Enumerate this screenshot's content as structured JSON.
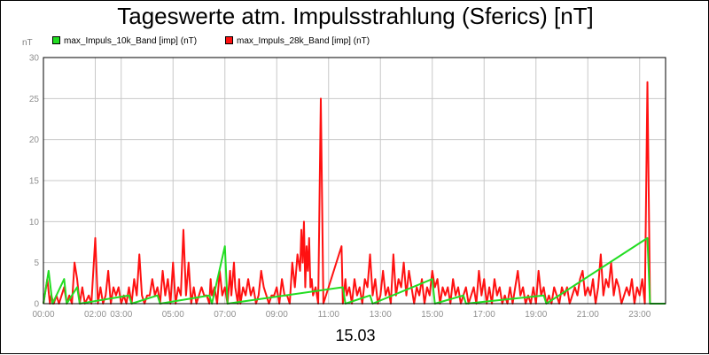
{
  "chart_data": {
    "type": "line",
    "title": "Tageswerte atm. Impulsstrahlung (Sferics) [nT]",
    "ylabel": "nT",
    "xlabel": "15.03",
    "ylim": [
      0,
      30
    ],
    "yticks": [
      "0",
      "5",
      "10",
      "15",
      "20",
      "25",
      "30"
    ],
    "xlim": [
      0,
      24
    ],
    "xticks": [
      {
        "h": 0,
        "label": "00:00"
      },
      {
        "h": 2,
        "label": "02:00"
      },
      {
        "h": 3,
        "label": "03:00"
      },
      {
        "h": 5,
        "label": "05:00"
      },
      {
        "h": 7,
        "label": "07:00"
      },
      {
        "h": 9,
        "label": "09:00"
      },
      {
        "h": 11,
        "label": "11:00"
      },
      {
        "h": 13,
        "label": "13:00"
      },
      {
        "h": 15,
        "label": "15:00"
      },
      {
        "h": 17,
        "label": "17:00"
      },
      {
        "h": 19,
        "label": "19:00"
      },
      {
        "h": 21,
        "label": "21:00"
      },
      {
        "h": 23,
        "label": "23:00"
      }
    ],
    "grid": true,
    "legend_position": "top-left",
    "series": [
      {
        "name": "max_Impuls_10k_Band [imp] (nT)",
        "color": "#22dd22",
        "points": [
          [
            0.0,
            0
          ],
          [
            0.2,
            4
          ],
          [
            0.35,
            0
          ],
          [
            0.8,
            3
          ],
          [
            0.9,
            0
          ],
          [
            1.3,
            2
          ],
          [
            1.4,
            0
          ],
          [
            3.3,
            1
          ],
          [
            3.4,
            0
          ],
          [
            4.4,
            1
          ],
          [
            4.5,
            0
          ],
          [
            6.4,
            1
          ],
          [
            6.5,
            0
          ],
          [
            7.0,
            7
          ],
          [
            7.1,
            0
          ],
          [
            11.55,
            2
          ],
          [
            11.65,
            0
          ],
          [
            12.6,
            1
          ],
          [
            12.7,
            0
          ],
          [
            15.0,
            3
          ],
          [
            15.1,
            0
          ],
          [
            16.2,
            1
          ],
          [
            16.3,
            0
          ],
          [
            19.3,
            1
          ],
          [
            19.4,
            0
          ],
          [
            23.3,
            8
          ],
          [
            23.4,
            0
          ]
        ]
      },
      {
        "name": "max_Impuls_28k_Band [imp] (nT)",
        "color": "#ff1111",
        "points": [
          [
            0.0,
            0
          ],
          [
            0.15,
            3
          ],
          [
            0.25,
            0
          ],
          [
            0.3,
            1
          ],
          [
            0.4,
            0
          ],
          [
            0.5,
            1
          ],
          [
            0.6,
            0
          ],
          [
            0.8,
            2
          ],
          [
            0.9,
            0
          ],
          [
            1.0,
            1
          ],
          [
            1.1,
            0
          ],
          [
            1.2,
            5
          ],
          [
            1.3,
            3
          ],
          [
            1.4,
            0
          ],
          [
            1.5,
            2
          ],
          [
            1.6,
            0
          ],
          [
            1.75,
            1
          ],
          [
            1.85,
            0
          ],
          [
            2.0,
            8
          ],
          [
            2.1,
            0
          ],
          [
            2.2,
            2
          ],
          [
            2.3,
            0
          ],
          [
            2.4,
            1
          ],
          [
            2.5,
            4
          ],
          [
            2.6,
            0
          ],
          [
            2.7,
            2
          ],
          [
            2.8,
            1
          ],
          [
            2.9,
            2
          ],
          [
            3.0,
            0
          ],
          [
            3.1,
            1
          ],
          [
            3.2,
            0
          ],
          [
            3.3,
            2
          ],
          [
            3.4,
            0
          ],
          [
            3.5,
            3
          ],
          [
            3.6,
            1
          ],
          [
            3.7,
            6
          ],
          [
            3.8,
            1
          ],
          [
            3.9,
            0
          ],
          [
            4.0,
            1
          ],
          [
            4.1,
            1
          ],
          [
            4.2,
            3
          ],
          [
            4.3,
            1
          ],
          [
            4.4,
            2
          ],
          [
            4.5,
            0
          ],
          [
            4.6,
            4
          ],
          [
            4.7,
            1
          ],
          [
            4.8,
            3
          ],
          [
            4.9,
            0
          ],
          [
            5.0,
            5
          ],
          [
            5.1,
            0
          ],
          [
            5.2,
            2
          ],
          [
            5.3,
            1
          ],
          [
            5.4,
            9
          ],
          [
            5.5,
            1
          ],
          [
            5.6,
            5
          ],
          [
            5.7,
            0
          ],
          [
            5.8,
            2
          ],
          [
            5.9,
            0
          ],
          [
            6.0,
            1
          ],
          [
            6.1,
            2
          ],
          [
            6.2,
            1
          ],
          [
            6.3,
            1
          ],
          [
            6.4,
            0
          ],
          [
            6.45,
            3
          ],
          [
            6.5,
            1
          ],
          [
            6.6,
            2
          ],
          [
            6.7,
            0
          ],
          [
            6.8,
            4
          ],
          [
            6.9,
            1
          ],
          [
            7.0,
            2
          ],
          [
            7.1,
            0
          ],
          [
            7.2,
            4
          ],
          [
            7.25,
            1
          ],
          [
            7.35,
            5
          ],
          [
            7.4,
            2
          ],
          [
            7.5,
            0
          ],
          [
            7.55,
            3
          ],
          [
            7.6,
            0
          ],
          [
            7.7,
            2
          ],
          [
            7.8,
            1
          ],
          [
            7.9,
            3
          ],
          [
            8.0,
            1
          ],
          [
            8.1,
            2
          ],
          [
            8.2,
            0
          ],
          [
            8.3,
            1
          ],
          [
            8.4,
            4
          ],
          [
            8.5,
            2
          ],
          [
            8.6,
            1
          ],
          [
            8.7,
            0
          ],
          [
            8.8,
            1
          ],
          [
            8.9,
            1
          ],
          [
            9.0,
            2
          ],
          [
            9.1,
            0
          ],
          [
            9.2,
            3
          ],
          [
            9.3,
            1
          ],
          [
            9.4,
            1
          ],
          [
            9.5,
            0
          ],
          [
            9.6,
            5
          ],
          [
            9.7,
            2
          ],
          [
            9.8,
            6
          ],
          [
            9.9,
            4
          ],
          [
            9.95,
            9
          ],
          [
            10.0,
            5
          ],
          [
            10.05,
            10
          ],
          [
            10.1,
            2
          ],
          [
            10.15,
            7
          ],
          [
            10.2,
            4
          ],
          [
            10.25,
            8
          ],
          [
            10.3,
            2
          ],
          [
            10.35,
            3
          ],
          [
            10.4,
            1
          ],
          [
            10.5,
            2
          ],
          [
            10.6,
            0
          ],
          [
            10.7,
            25
          ],
          [
            10.8,
            0
          ],
          [
            11.5,
            7
          ],
          [
            11.55,
            0
          ],
          [
            11.65,
            3
          ],
          [
            11.7,
            1
          ],
          [
            11.8,
            2
          ],
          [
            11.9,
            0
          ],
          [
            12.0,
            3
          ],
          [
            12.1,
            1
          ],
          [
            12.2,
            2
          ],
          [
            12.3,
            0
          ],
          [
            12.4,
            3
          ],
          [
            12.5,
            2
          ],
          [
            12.6,
            6
          ],
          [
            12.7,
            1
          ],
          [
            12.8,
            3
          ],
          [
            12.9,
            0
          ],
          [
            13.0,
            1
          ],
          [
            13.1,
            4
          ],
          [
            13.2,
            1
          ],
          [
            13.3,
            2
          ],
          [
            13.4,
            0
          ],
          [
            13.5,
            6
          ],
          [
            13.6,
            1
          ],
          [
            13.7,
            3
          ],
          [
            13.8,
            2
          ],
          [
            13.9,
            5
          ],
          [
            14.0,
            1
          ],
          [
            14.1,
            4
          ],
          [
            14.2,
            2
          ],
          [
            14.3,
            0
          ],
          [
            14.4,
            2
          ],
          [
            14.5,
            1
          ],
          [
            14.6,
            3
          ],
          [
            14.7,
            0
          ],
          [
            14.8,
            2
          ],
          [
            14.9,
            1
          ],
          [
            15.0,
            4
          ],
          [
            15.1,
            2
          ],
          [
            15.2,
            3
          ],
          [
            15.3,
            0
          ],
          [
            15.4,
            2
          ],
          [
            15.5,
            1
          ],
          [
            15.6,
            2
          ],
          [
            15.7,
            0
          ],
          [
            15.8,
            3
          ],
          [
            15.9,
            1
          ],
          [
            16.0,
            2
          ],
          [
            16.1,
            0
          ],
          [
            16.2,
            1
          ],
          [
            16.3,
            2
          ],
          [
            16.4,
            0
          ],
          [
            16.5,
            1
          ],
          [
            16.6,
            2
          ],
          [
            16.7,
            0
          ],
          [
            16.8,
            4
          ],
          [
            16.9,
            1
          ],
          [
            17.0,
            3
          ],
          [
            17.1,
            0
          ],
          [
            17.2,
            2
          ],
          [
            17.3,
            0
          ],
          [
            17.4,
            3
          ],
          [
            17.5,
            1
          ],
          [
            17.6,
            2
          ],
          [
            17.7,
            0
          ],
          [
            17.8,
            1
          ],
          [
            17.9,
            0
          ],
          [
            18.0,
            2
          ],
          [
            18.1,
            0
          ],
          [
            18.3,
            4
          ],
          [
            18.4,
            1
          ],
          [
            18.5,
            2
          ],
          [
            18.6,
            0
          ],
          [
            18.7,
            1
          ],
          [
            18.8,
            0
          ],
          [
            18.9,
            2
          ],
          [
            19.0,
            0
          ],
          [
            19.1,
            4
          ],
          [
            19.2,
            1
          ],
          [
            19.3,
            2
          ],
          [
            19.4,
            0
          ],
          [
            19.5,
            1
          ],
          [
            19.6,
            0
          ],
          [
            19.7,
            2
          ],
          [
            19.8,
            1
          ],
          [
            19.9,
            0
          ],
          [
            20.0,
            2
          ],
          [
            20.1,
            1
          ],
          [
            20.2,
            2
          ],
          [
            20.3,
            0
          ],
          [
            20.4,
            1
          ],
          [
            20.5,
            2
          ],
          [
            20.6,
            1
          ],
          [
            20.7,
            3
          ],
          [
            20.8,
            4
          ],
          [
            20.9,
            1
          ],
          [
            21.0,
            2
          ],
          [
            21.1,
            1
          ],
          [
            21.2,
            3
          ],
          [
            21.3,
            0
          ],
          [
            21.4,
            2
          ],
          [
            21.5,
            6
          ],
          [
            21.6,
            1
          ],
          [
            21.7,
            3
          ],
          [
            21.8,
            2
          ],
          [
            21.9,
            5
          ],
          [
            22.0,
            1
          ],
          [
            22.1,
            3
          ],
          [
            22.2,
            2
          ],
          [
            22.3,
            0
          ],
          [
            22.4,
            1
          ],
          [
            22.5,
            2
          ],
          [
            22.6,
            1
          ],
          [
            22.7,
            3
          ],
          [
            22.8,
            0
          ],
          [
            22.9,
            2
          ],
          [
            23.0,
            1
          ],
          [
            23.1,
            3
          ],
          [
            23.2,
            0
          ],
          [
            23.3,
            27
          ],
          [
            23.4,
            0
          ]
        ]
      }
    ]
  }
}
